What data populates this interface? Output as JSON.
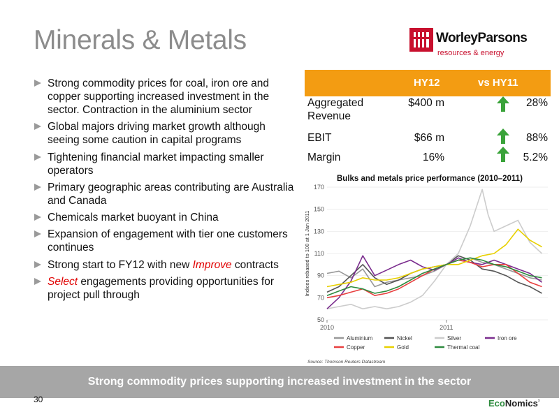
{
  "slide": {
    "title": "Minerals & Metals",
    "page_number": "30",
    "banner": "Strong commodity prices supporting increased investment in the sector"
  },
  "logo": {
    "name": "WorleyParsons",
    "tagline": "resources & energy",
    "brand_color": "#c8102e"
  },
  "footer_brand": {
    "part1": "Eco",
    "part2": "Nomics",
    "mark": "¹",
    "color_eco": "#2e8b3e"
  },
  "bullets": [
    {
      "text": "Strong commodity prices for coal, iron ore and copper supporting increased investment in the sector.  Contraction in the aluminium sector"
    },
    {
      "text": "Global majors driving market growth although seeing some caution in capital programs"
    },
    {
      "text": "Tightening financial market impacting smaller operators"
    },
    {
      "text": "Primary geographic areas contributing are Australia and Canada"
    },
    {
      "text": "Chemicals market buoyant in China"
    },
    {
      "text": "Expansion of engagement with tier one customers continues"
    },
    {
      "pre": "Strong start to FY12  with new ",
      "highlight": "Improve",
      "post": " contracts"
    },
    {
      "pre": "",
      "highlight": "Select",
      "post": " engagements providing opportunities for project pull through"
    }
  ],
  "financials": {
    "header_color": "#f39c12",
    "col_hy12": "HY12",
    "col_vs": "vs HY11",
    "rows": [
      {
        "label": "Aggregated Revenue",
        "value": "$400 m",
        "trend": "up",
        "change": "28%"
      },
      {
        "label": "EBIT",
        "value": "$66 m",
        "trend": "up",
        "change": "88%"
      },
      {
        "label": "Margin",
        "value": "16%",
        "trend": "up",
        "change": "5.2%"
      }
    ]
  },
  "chart_data": {
    "type": "line",
    "title": "Bulks and metals price performance (2010–2011)",
    "ylabel": "Indices rebased to 100 at 1 Jan 2011",
    "xlabel": "",
    "ylim": [
      50,
      170
    ],
    "yticks": [
      50,
      70,
      90,
      110,
      130,
      150,
      170
    ],
    "x_tick_labels": [
      "2010",
      "2011"
    ],
    "x_tick_positions": [
      0,
      1
    ],
    "xlim": [
      0,
      1.85
    ],
    "source": "Source: Thomson Reuters Datastream",
    "legend_position": "bottom",
    "series": [
      {
        "name": "Aluminium",
        "color": "#999999",
        "x": [
          0,
          0.1,
          0.2,
          0.3,
          0.4,
          0.5,
          0.6,
          0.7,
          0.8,
          0.9,
          1.0,
          1.1,
          1.2,
          1.3,
          1.4,
          1.5,
          1.6,
          1.7,
          1.8
        ],
        "y": [
          92,
          94,
          88,
          96,
          80,
          84,
          86,
          88,
          90,
          94,
          100,
          104,
          106,
          102,
          100,
          96,
          92,
          88,
          86
        ]
      },
      {
        "name": "Nickel",
        "color": "#555555",
        "x": [
          0,
          0.1,
          0.2,
          0.3,
          0.4,
          0.5,
          0.6,
          0.7,
          0.8,
          0.9,
          1.0,
          1.1,
          1.2,
          1.3,
          1.4,
          1.5,
          1.6,
          1.7,
          1.8
        ],
        "y": [
          75,
          80,
          90,
          100,
          88,
          82,
          86,
          92,
          96,
          98,
          100,
          108,
          104,
          96,
          94,
          90,
          84,
          80,
          74
        ]
      },
      {
        "name": "Silver",
        "color": "#cccccc",
        "x": [
          0,
          0.1,
          0.2,
          0.3,
          0.4,
          0.5,
          0.6,
          0.7,
          0.8,
          0.9,
          1.0,
          1.1,
          1.2,
          1.3,
          1.35,
          1.4,
          1.5,
          1.6,
          1.7,
          1.8
        ],
        "y": [
          60,
          62,
          64,
          60,
          62,
          60,
          62,
          66,
          72,
          85,
          100,
          110,
          135,
          168,
          145,
          130,
          135,
          140,
          120,
          110
        ]
      },
      {
        "name": "Iron ore",
        "color": "#7b2d8e",
        "x": [
          0,
          0.1,
          0.2,
          0.3,
          0.4,
          0.5,
          0.6,
          0.7,
          0.8,
          0.9,
          1.0,
          1.1,
          1.2,
          1.3,
          1.4,
          1.5,
          1.6,
          1.7,
          1.8
        ],
        "y": [
          60,
          70,
          85,
          108,
          90,
          95,
          100,
          104,
          98,
          95,
          100,
          106,
          102,
          100,
          104,
          100,
          96,
          92,
          84
        ]
      },
      {
        "name": "Copper",
        "color": "#e84040",
        "x": [
          0,
          0.1,
          0.2,
          0.3,
          0.4,
          0.5,
          0.6,
          0.7,
          0.8,
          0.9,
          1.0,
          1.1,
          1.2,
          1.3,
          1.4,
          1.5,
          1.6,
          1.7,
          1.8
        ],
        "y": [
          70,
          72,
          75,
          78,
          72,
          74,
          78,
          84,
          90,
          96,
          100,
          104,
          102,
          98,
          100,
          100,
          92,
          84,
          80
        ]
      },
      {
        "name": "Gold",
        "color": "#e8d000",
        "x": [
          0,
          0.1,
          0.2,
          0.3,
          0.4,
          0.5,
          0.6,
          0.7,
          0.8,
          0.9,
          1.0,
          1.1,
          1.2,
          1.3,
          1.4,
          1.5,
          1.6,
          1.7,
          1.8
        ],
        "y": [
          80,
          82,
          84,
          88,
          86,
          86,
          88,
          92,
          96,
          98,
          100,
          100,
          104,
          108,
          110,
          118,
          132,
          122,
          116
        ]
      },
      {
        "name": "Thermal coal",
        "color": "#2e8b3e",
        "x": [
          0,
          0.1,
          0.2,
          0.3,
          0.4,
          0.5,
          0.6,
          0.7,
          0.8,
          0.9,
          1.0,
          1.1,
          1.2,
          1.3,
          1.4,
          1.5,
          1.6,
          1.7,
          1.8
        ],
        "y": [
          72,
          76,
          80,
          78,
          74,
          76,
          80,
          86,
          92,
          96,
          100,
          104,
          106,
          104,
          100,
          98,
          94,
          90,
          88
        ]
      }
    ]
  }
}
